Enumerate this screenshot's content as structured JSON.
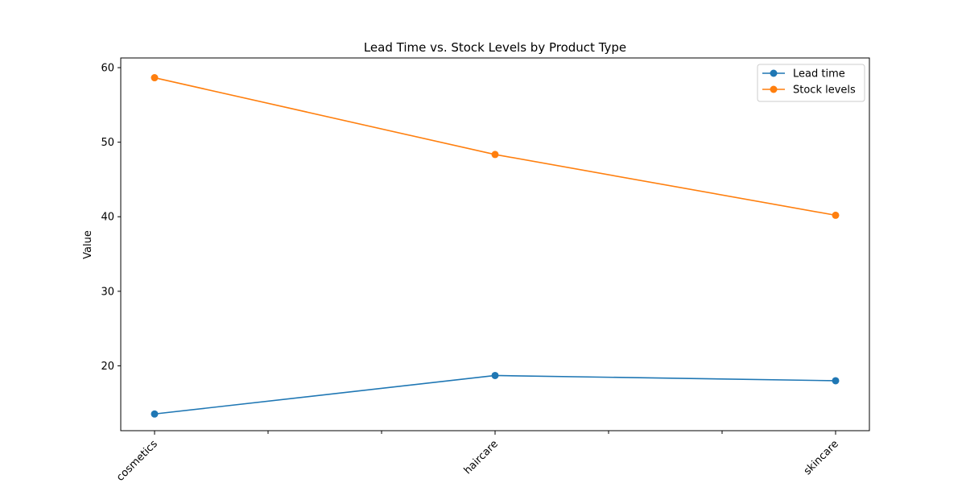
{
  "chart_data": {
    "type": "line",
    "title": "Lead Time vs. Stock Levels by Product Type",
    "xlabel": "",
    "ylabel": "Value",
    "categories": [
      "cosmetics",
      "haircare",
      "skincare"
    ],
    "ylim": [
      11.3,
      61.3
    ],
    "yticks": [
      20,
      30,
      40,
      50,
      60
    ],
    "minor_xticks": 6,
    "grid": false,
    "legend_position": "top-right",
    "series": [
      {
        "name": "Lead time",
        "color": "#1f77b4",
        "values": [
          13.54,
          18.7,
          18.0
        ]
      },
      {
        "name": "Stock levels",
        "color": "#ff7f0e",
        "values": [
          58.65,
          48.35,
          40.2
        ]
      }
    ]
  }
}
